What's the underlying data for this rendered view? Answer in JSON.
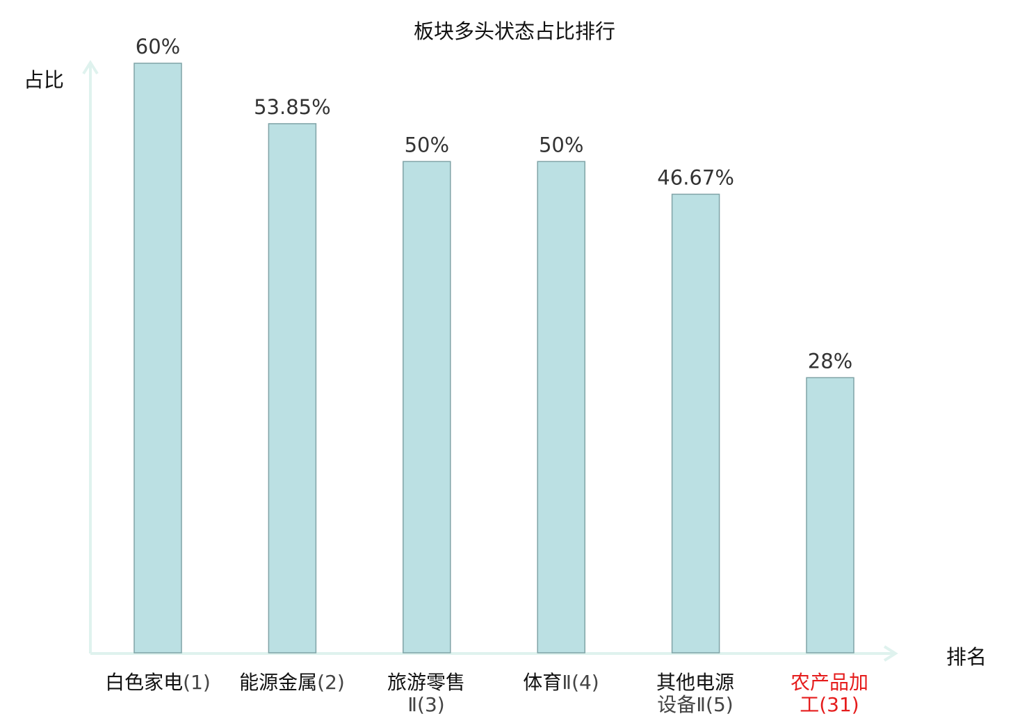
{
  "chart_data": {
    "type": "bar",
    "title": "板块多头状态占比排行",
    "ylabel": "占比",
    "xlabel": "排名",
    "ylim": [
      0,
      60
    ],
    "grid": false,
    "categories": [
      {
        "name": "白色家电",
        "rank": "(1)",
        "highlight": false
      },
      {
        "name": "能源金属",
        "rank": "(2)",
        "highlight": false
      },
      {
        "name": "旅游零售",
        "rank": "Ⅱ(3)",
        "highlight": false
      },
      {
        "name": "体育",
        "rank": "Ⅱ(4)",
        "highlight": false
      },
      {
        "name": "其他电源",
        "rank": "设备Ⅱ(5)",
        "highlight": false
      },
      {
        "name": "农产品加",
        "rank": "工(31)",
        "highlight": true
      }
    ],
    "values": [
      60,
      53.85,
      50,
      50,
      46.67,
      28
    ],
    "labels": [
      "60%",
      "53.85%",
      "50%",
      "50%",
      "46.67%",
      "28%"
    ],
    "colors": {
      "bar_fill": "#bbe0e3",
      "bar_stroke": "#7fa3a6",
      "axis": "#dff2ee",
      "highlight": "#e51c1c",
      "value_label": "#333333"
    }
  }
}
